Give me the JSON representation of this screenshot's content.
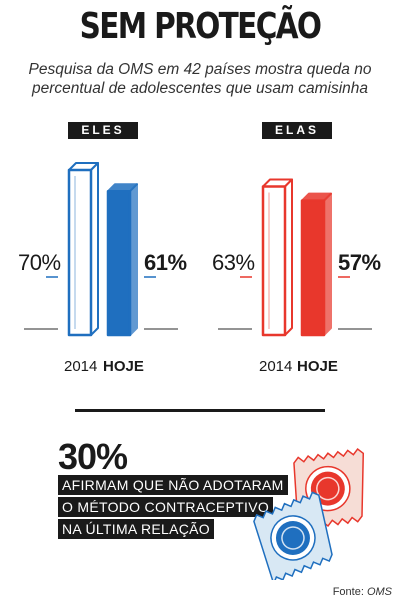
{
  "title": "SEM PROTEÇÃO",
  "subtitle_line1": "Pesquisa da OMS em 42 países mostra queda no",
  "subtitle_line2": "percentual de adolescentes que usam camisinha",
  "colors": {
    "eles": "#1f6fbf",
    "elas": "#e8372c",
    "ink": "#1a1a1a"
  },
  "chart_data": [
    {
      "type": "bar",
      "title": "ELES",
      "categories": [
        "2014",
        "HOJE"
      ],
      "values": [
        70,
        61
      ],
      "value_labels": [
        "70%",
        "61%"
      ],
      "ylim": [
        0,
        100
      ]
    },
    {
      "type": "bar",
      "title": "ELAS",
      "categories": [
        "2014",
        "HOJE"
      ],
      "values": [
        63,
        57
      ],
      "value_labels": [
        "63%",
        "57%"
      ],
      "ylim": [
        0,
        100
      ]
    }
  ],
  "highlight": {
    "number": "30%",
    "lines": [
      "AFIRMAM QUE NÃO ADOTARAM",
      "O MÉTODO CONTRACEPTIVO",
      "NA ÚLTIMA RELAÇÃO"
    ]
  },
  "source_label": "Fonte:",
  "source_name": "OMS",
  "illustration": "condom-packets-icon"
}
